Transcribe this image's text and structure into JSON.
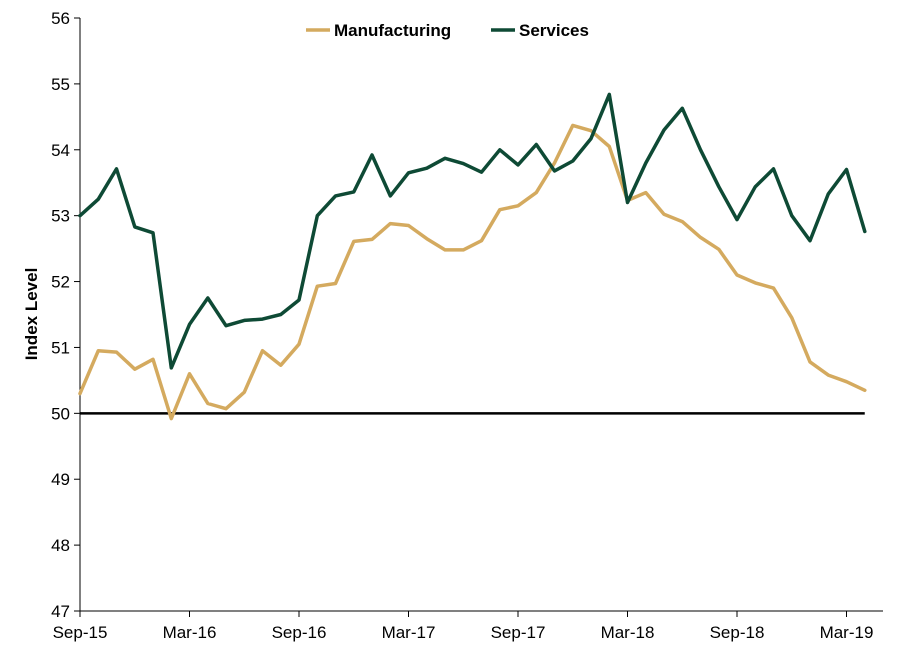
{
  "chart_data": {
    "type": "line",
    "ylabel": "Index Level",
    "ylim": [
      47,
      56
    ],
    "yticks": [
      47,
      48,
      49,
      50,
      51,
      52,
      53,
      54,
      55,
      56
    ],
    "xrange": [
      "2015-09",
      "2019-05"
    ],
    "xticks": [
      "Sep-15",
      "Mar-16",
      "Sep-16",
      "Mar-17",
      "Sep-17",
      "Mar-18",
      "Sep-18",
      "Mar-19"
    ],
    "grid": false,
    "legend": "top-center",
    "reference_line": {
      "y": 50,
      "color": "#000000"
    },
    "x": [
      "2015-09",
      "2015-10",
      "2015-11",
      "2015-12",
      "2016-01",
      "2016-02",
      "2016-03",
      "2016-04",
      "2016-05",
      "2016-06",
      "2016-07",
      "2016-08",
      "2016-09",
      "2016-10",
      "2016-11",
      "2016-12",
      "2017-01",
      "2017-02",
      "2017-03",
      "2017-04",
      "2017-05",
      "2017-06",
      "2017-07",
      "2017-08",
      "2017-09",
      "2017-10",
      "2017-11",
      "2017-12",
      "2018-01",
      "2018-02",
      "2018-03",
      "2018-04",
      "2018-05",
      "2018-06",
      "2018-07",
      "2018-08",
      "2018-09",
      "2018-10",
      "2018-11",
      "2018-12",
      "2019-01",
      "2019-02",
      "2019-03",
      "2019-04",
      "2019-05"
    ],
    "series": [
      {
        "name": "Manufacturing",
        "color": "#d4aa5f",
        "values": [
          50.3,
          50.95,
          50.93,
          50.67,
          50.82,
          49.92,
          50.6,
          50.15,
          50.07,
          50.32,
          50.95,
          50.73,
          51.05,
          51.93,
          51.97,
          52.61,
          52.64,
          52.88,
          52.85,
          52.65,
          52.48,
          52.48,
          52.62,
          53.09,
          53.15,
          53.35,
          53.8,
          54.37,
          54.29,
          54.05,
          53.23,
          53.35,
          53.02,
          52.91,
          52.67,
          52.49,
          52.1,
          51.98,
          51.9,
          51.45,
          50.78,
          50.58,
          50.48,
          50.35,
          null
        ]
      },
      {
        "name": "Services",
        "color": "#0e4a35",
        "values": [
          53.0,
          53.25,
          53.71,
          52.83,
          52.74,
          50.69,
          51.35,
          51.75,
          51.33,
          51.41,
          51.43,
          51.5,
          51.72,
          53.0,
          53.3,
          53.36,
          53.92,
          53.3,
          53.65,
          53.72,
          53.87,
          53.79,
          53.66,
          54.0,
          53.77,
          54.08,
          53.68,
          53.83,
          54.17,
          54.84,
          53.2,
          53.8,
          54.3,
          54.63,
          54.0,
          53.44,
          52.94,
          53.44,
          53.71,
          53.0,
          52.62,
          53.33,
          53.7,
          52.76,
          null
        ]
      }
    ]
  }
}
